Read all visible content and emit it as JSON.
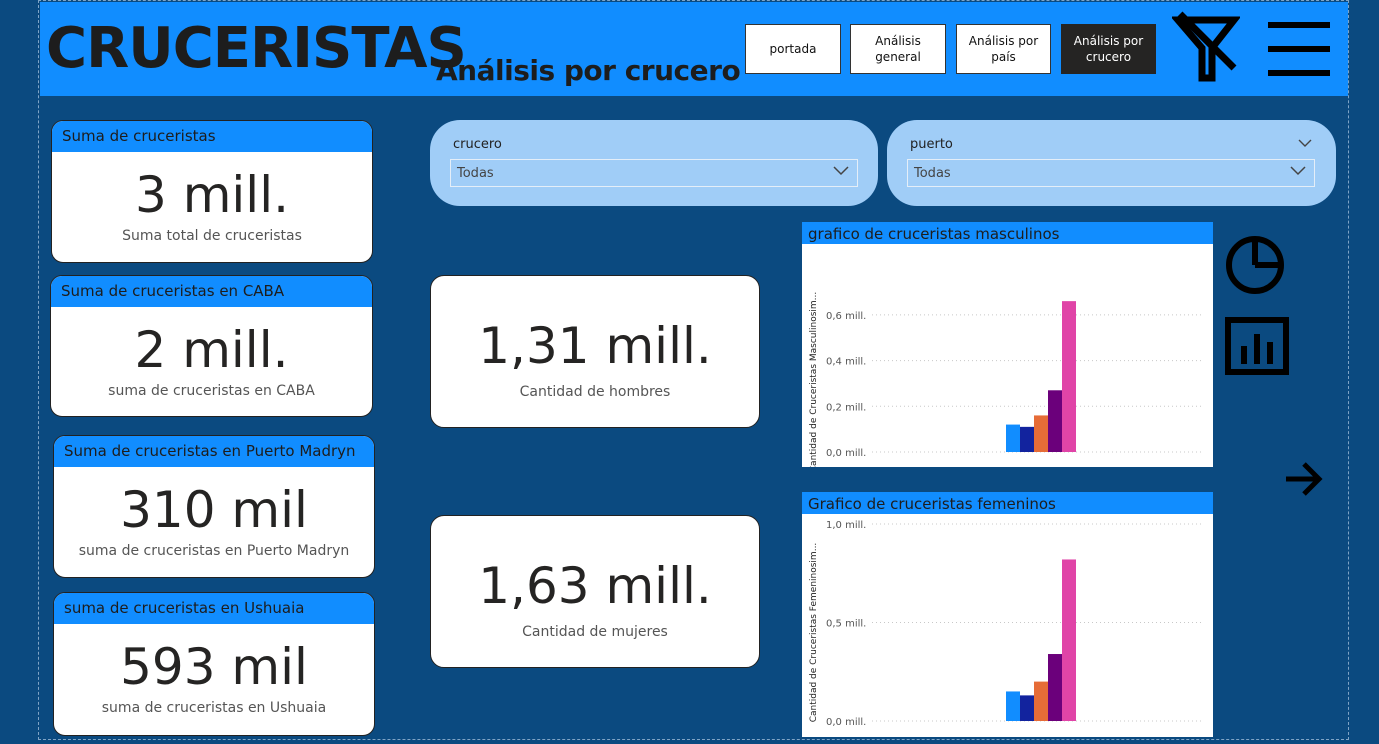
{
  "header": {
    "brand": "CRUCERISTAS",
    "subtitle": "Análisis por crucero",
    "nav": [
      "portada",
      "Análisis general",
      "Análisis por país",
      "Análisis por crucero"
    ],
    "icons": [
      "clear-filter-icon",
      "menu-icon"
    ]
  },
  "cards": [
    {
      "caption": "Suma de cruceristas",
      "value": "3 mill.",
      "label": "Suma total de cruceristas"
    },
    {
      "caption": "Suma de cruceristas en CABA",
      "value": "2 mill.",
      "label": "suma de cruceristas en CABA"
    },
    {
      "caption": "Suma de cruceristas en Puerto Madryn",
      "value": "310 mil",
      "label": "suma de cruceristas en Puerto Madryn"
    },
    {
      "caption": "suma de cruceristas en Ushuaia",
      "value": "593 mil",
      "label": "suma de cruceristas en Ushuaia"
    }
  ],
  "gender_cards": [
    {
      "value": "1,31 mill.",
      "label": "Cantidad de hombres"
    },
    {
      "value": "1,63 mill.",
      "label": "Cantidad de mujeres"
    }
  ],
  "slicers": [
    {
      "title": "crucero",
      "value": "Todas"
    },
    {
      "title": "puerto",
      "value": "Todas"
    }
  ],
  "side_icons": [
    "pie-chart-icon",
    "bar-chart-icon",
    "arrow-right-icon"
  ],
  "colors": {
    "accent": "#118dff",
    "background": "#0b4a80",
    "bars": [
      "#118dff",
      "#12239e",
      "#e66c37",
      "#6b007b",
      "#e044a7"
    ]
  },
  "chart_data": [
    {
      "type": "bar",
      "title": "grafico de cruceristas masculinos",
      "ylabel": "Cantidad de Cruceristas Masculinosim...",
      "yticks": [
        "0,0 mill.",
        "0,2 mill.",
        "0,4 mill.",
        "0,6 mill."
      ],
      "ylim": [
        0,
        0.7
      ],
      "values": [
        0.12,
        0.11,
        0.16,
        0.27,
        0.66
      ]
    },
    {
      "type": "bar",
      "title": "Grafico de cruceristas femeninos",
      "ylabel": "Cantidad de Cruceristas Femeninosim...",
      "yticks": [
        "0,0 mill.",
        "0,5 mill.",
        "1,0 mill."
      ],
      "ylim": [
        0,
        1.0
      ],
      "values": [
        0.15,
        0.13,
        0.2,
        0.34,
        0.82
      ]
    }
  ]
}
